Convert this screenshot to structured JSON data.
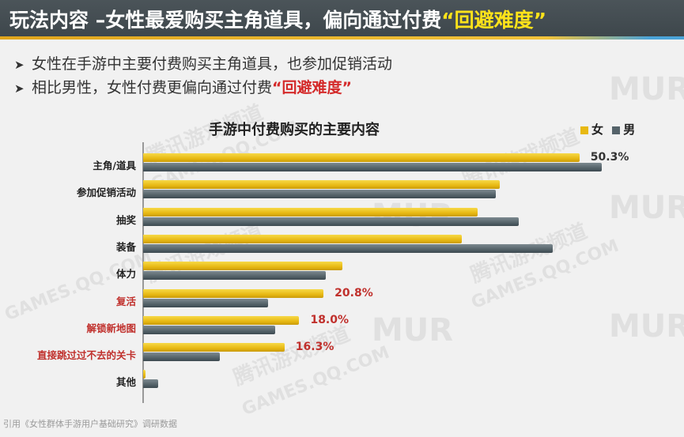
{
  "header": {
    "title_main": "玩法内容 –女性最爱购买主角道具，偏向通过付费",
    "title_highlight": "“回避难度”"
  },
  "bullets": [
    {
      "text": "女性在手游中主要付费购买主角道具，也参加促销活动",
      "highlight": ""
    },
    {
      "text": "相比男性，女性付费更偏向通过付费",
      "highlight": "“回避难度”"
    }
  ],
  "colors": {
    "female": "#e8b913",
    "male": "#55636a",
    "highlight_red": "#c0302c",
    "header_bg": "#434c51",
    "header_accent": "#ffe31a"
  },
  "watermarks": [
    "腾讯游戏频道",
    "GAMES.QQ.COM",
    "MUR"
  ],
  "source": "引用《女性群体手游用户基础研究》调研数据",
  "chart_data": {
    "type": "bar",
    "orientation": "horizontal",
    "title": "手游中付费购买的主要内容",
    "legend": [
      "女",
      "男"
    ],
    "legend_position": "top-right",
    "categories": [
      "主角/道具",
      "参加促销活动",
      "抽奖",
      "装备",
      "体力",
      "复活",
      "解锁新地图",
      "直接跳过过不去的关卡",
      "其他"
    ],
    "highlighted_categories": [
      "复活",
      "解锁新地图",
      "直接跳过过不去的关卡"
    ],
    "series": [
      {
        "name": "女",
        "values": [
          50.3,
          41.1,
          38.6,
          36.7,
          23.0,
          20.8,
          18.0,
          16.3,
          0.3
        ]
      },
      {
        "name": "男",
        "values": [
          52.9,
          40.7,
          43.3,
          47.2,
          21.1,
          14.4,
          15.2,
          8.8,
          1.7
        ]
      }
    ],
    "data_labels": [
      {
        "category": "主角/道具",
        "series": "女",
        "label": "50.3%"
      },
      {
        "category": "复活",
        "series": "女",
        "label": "20.8%"
      },
      {
        "category": "解锁新地图",
        "series": "女",
        "label": "18.0%"
      },
      {
        "category": "直接跳过过不去的关卡",
        "series": "女",
        "label": "16.3%"
      }
    ],
    "xlabel": "",
    "ylabel": "",
    "xlim": [
      0,
      60
    ],
    "grid": false,
    "unit": "%"
  }
}
